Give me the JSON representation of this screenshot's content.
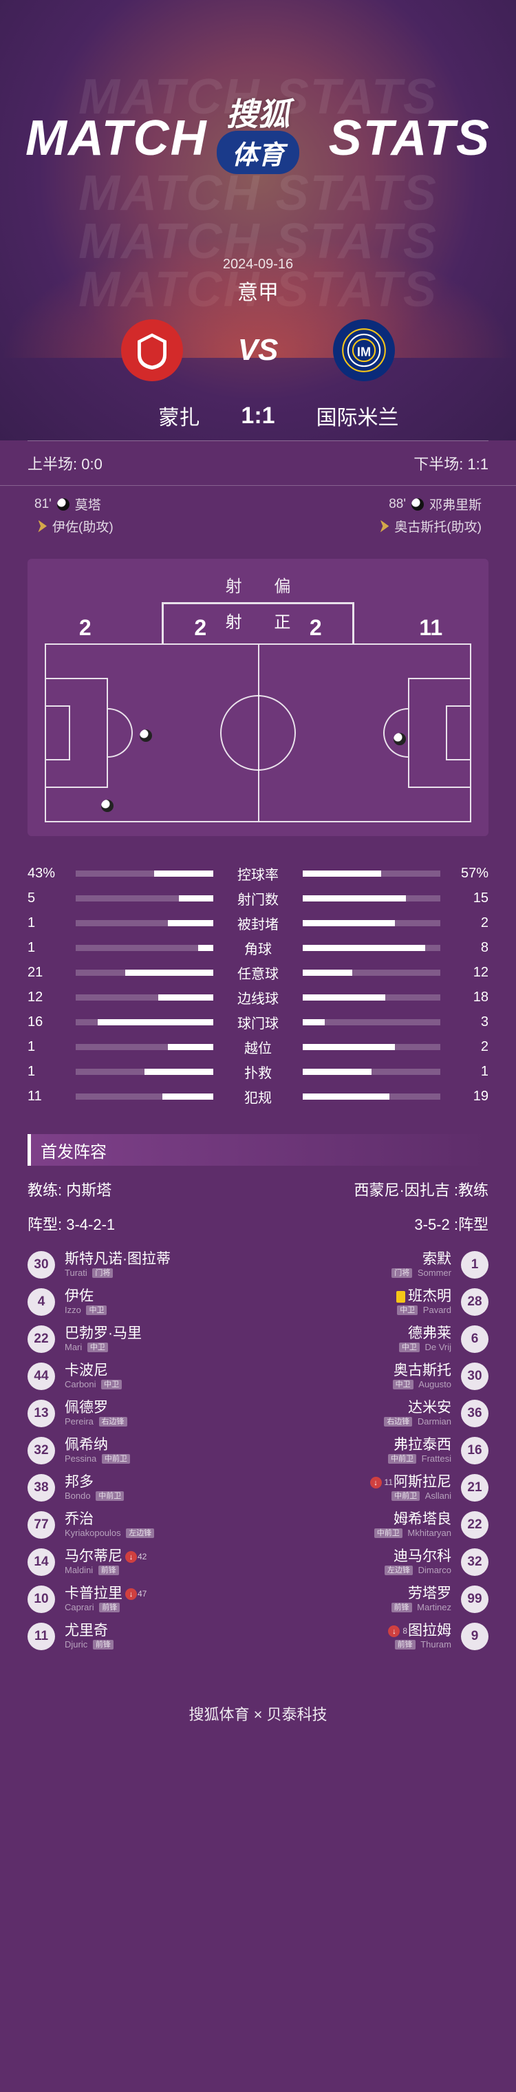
{
  "header": {
    "bg_text": "MATCH STATS",
    "sohu_top": "搜狐",
    "sohu_bottom": "体育",
    "date": "2024-09-16",
    "league": "意甲",
    "vs": "VS",
    "home_team": "蒙扎",
    "away_team": "国际米兰",
    "score": "1:1",
    "home_color": "#d32a2a",
    "away_color": "#0a2b7a"
  },
  "halves": {
    "first": "上半场: 0:0",
    "second": "下半场: 1:1"
  },
  "events": {
    "home": [
      {
        "min": "81'",
        "type": "goal",
        "text": "莫塔"
      },
      {
        "type": "assist",
        "text": "伊佐(助攻)"
      }
    ],
    "away": [
      {
        "min": "88'",
        "type": "goal",
        "text": "邓弗里斯"
      },
      {
        "type": "assist",
        "text": "奥古斯托(助攻)"
      }
    ]
  },
  "shots": {
    "off_label": "射 偏",
    "on_label": "射 正",
    "home_off": "2",
    "home_on": "2",
    "away_on": "2",
    "away_off": "11"
  },
  "stats": [
    {
      "label": "控球率",
      "home": "43%",
      "away": "57%",
      "hpct": 43,
      "apct": 57
    },
    {
      "label": "射门数",
      "home": "5",
      "away": "15",
      "hpct": 25,
      "apct": 75
    },
    {
      "label": "被封堵",
      "home": "1",
      "away": "2",
      "hpct": 33,
      "apct": 67
    },
    {
      "label": "角球",
      "home": "1",
      "away": "8",
      "hpct": 11,
      "apct": 89
    },
    {
      "label": "任意球",
      "home": "21",
      "away": "12",
      "hpct": 64,
      "apct": 36
    },
    {
      "label": "边线球",
      "home": "12",
      "away": "18",
      "hpct": 40,
      "apct": 60
    },
    {
      "label": "球门球",
      "home": "16",
      "away": "3",
      "hpct": 84,
      "apct": 16
    },
    {
      "label": "越位",
      "home": "1",
      "away": "2",
      "hpct": 33,
      "apct": 67
    },
    {
      "label": "扑救",
      "home": "1",
      "away": "1",
      "hpct": 50,
      "apct": 50
    },
    {
      "label": "犯规",
      "home": "11",
      "away": "19",
      "hpct": 37,
      "apct": 63
    }
  ],
  "lineup": {
    "header": "首发阵容",
    "coach_label_home": "教练: 内斯塔",
    "coach_label_away": "西蒙尼·因扎吉 :教练",
    "formation_home": "阵型: 3-4-2-1",
    "formation_away": "3-5-2 :阵型",
    "home": [
      {
        "num": "30",
        "cn": "斯特凡诺·图拉蒂",
        "en": "Turati",
        "pos": "门将",
        "card": false,
        "sub": null
      },
      {
        "num": "4",
        "cn": "伊佐",
        "en": "Izzo",
        "pos": "中卫",
        "card": false,
        "sub": null
      },
      {
        "num": "22",
        "cn": "巴勃罗·马里",
        "en": "Mari",
        "pos": "中卫",
        "card": false,
        "sub": null
      },
      {
        "num": "44",
        "cn": "卡波尼",
        "en": "Carboni",
        "pos": "中卫",
        "card": false,
        "sub": null
      },
      {
        "num": "13",
        "cn": "佩德罗",
        "en": "Pereira",
        "pos": "右边锋",
        "card": false,
        "sub": null
      },
      {
        "num": "32",
        "cn": "佩希纳",
        "en": "Pessina",
        "pos": "中前卫",
        "card": false,
        "sub": null
      },
      {
        "num": "38",
        "cn": "邦多",
        "en": "Bondo",
        "pos": "中前卫",
        "card": false,
        "sub": null
      },
      {
        "num": "77",
        "cn": "乔治",
        "en": "Kyriakopoulos",
        "pos": "左边锋",
        "card": false,
        "sub": null
      },
      {
        "num": "14",
        "cn": "马尔蒂尼",
        "en": "Maldini",
        "pos": "前锋",
        "card": false,
        "sub": "42"
      },
      {
        "num": "10",
        "cn": "卡普拉里",
        "en": "Caprari",
        "pos": "前锋",
        "card": false,
        "sub": "47"
      },
      {
        "num": "11",
        "cn": "尤里奇",
        "en": "Djuric",
        "pos": "前锋",
        "card": false,
        "sub": null
      }
    ],
    "away": [
      {
        "num": "1",
        "cn": "索默",
        "en": "Sommer",
        "pos": "门将",
        "card": false,
        "sub": null
      },
      {
        "num": "28",
        "cn": "班杰明",
        "en": "Pavard",
        "pos": "中卫",
        "card": true,
        "sub": null
      },
      {
        "num": "6",
        "cn": "德弗莱",
        "en": "De Vrij",
        "pos": "中卫",
        "card": false,
        "sub": null
      },
      {
        "num": "30",
        "cn": "奥古斯托",
        "en": "Augusto",
        "pos": "中卫",
        "card": false,
        "sub": null
      },
      {
        "num": "36",
        "cn": "达米安",
        "en": "Darmian",
        "pos": "右边锋",
        "card": false,
        "sub": null
      },
      {
        "num": "16",
        "cn": "弗拉泰西",
        "en": "Frattesi",
        "pos": "中前卫",
        "card": false,
        "sub": null
      },
      {
        "num": "21",
        "cn": "阿斯拉尼",
        "en": "Asllani",
        "pos": "中前卫",
        "card": false,
        "sub": "11"
      },
      {
        "num": "22",
        "cn": "姆希塔良",
        "en": "Mkhitaryan",
        "pos": "中前卫",
        "card": false,
        "sub": null
      },
      {
        "num": "32",
        "cn": "迪马尔科",
        "en": "Dimarco",
        "pos": "左边锋",
        "card": false,
        "sub": null
      },
      {
        "num": "99",
        "cn": "劳塔罗",
        "en": "Martinez",
        "pos": "前锋",
        "card": false,
        "sub": null
      },
      {
        "num": "9",
        "cn": "图拉姆",
        "en": "Thuram",
        "pos": "前锋",
        "card": false,
        "sub": "8"
      }
    ]
  },
  "footer": "搜狐体育 × 贝泰科技"
}
